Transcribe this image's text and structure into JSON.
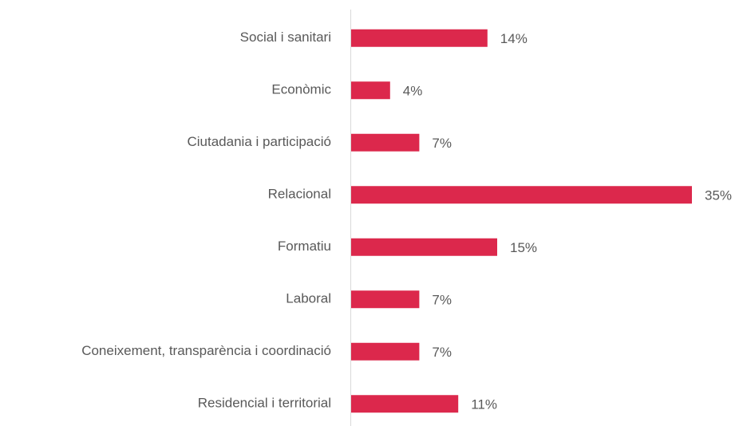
{
  "chart_data": {
    "type": "hbar",
    "categories": [
      "Social i sanitari",
      "Econòmic",
      "Ciutadania i participació",
      "Relacional",
      "Formatiu",
      "Laboral",
      "Coneixement, transparència i coordinació",
      "Residencial i territorial"
    ],
    "values": [
      14,
      4,
      7,
      35,
      15,
      7,
      7,
      11
    ],
    "value_labels": [
      "14%",
      "4%",
      "7%",
      "35%",
      "15%",
      "7%",
      "7%",
      "11%"
    ],
    "color": "#dc284c"
  }
}
